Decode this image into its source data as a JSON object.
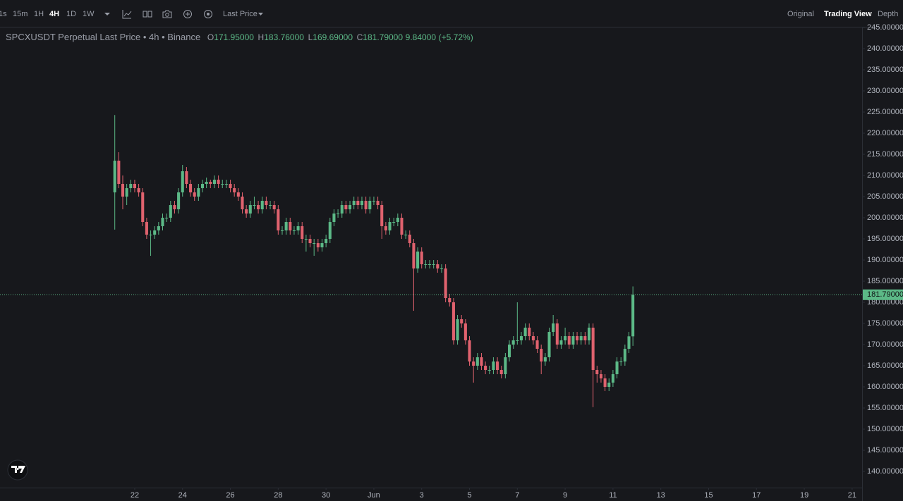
{
  "toolbar": {
    "intervals": [
      "1s",
      "15m",
      "1H",
      "4H",
      "1D",
      "1W"
    ],
    "price_type": "Last Price",
    "views": [
      "Original",
      "Trading View",
      "Depth"
    ]
  },
  "chart_data": {
    "type": "candlestick",
    "title": "SPCXUSDT Perpetual Last Price • 4h • Binance",
    "legend": {
      "items": [
        {
          "key": "O",
          "value": "171.95000"
        },
        {
          "key": "H",
          "value": "183.76000"
        },
        {
          "key": "L",
          "value": "169.69000"
        },
        {
          "key": "C",
          "value": "181.79000"
        }
      ],
      "change": "9.84000",
      "change_pct": "(+5.72%)"
    },
    "up_color": "#5cb987",
    "down_color": "#e0626e",
    "ohlc": [
      [
        206,
        224.3,
        197.2,
        213.5
      ],
      [
        213.5,
        215.5,
        207,
        208
      ],
      [
        208,
        210,
        202,
        205
      ],
      [
        205,
        208,
        203,
        207
      ],
      [
        207,
        209,
        206,
        208
      ],
      [
        208,
        209,
        206,
        207
      ],
      [
        207,
        208,
        205,
        206
      ],
      [
        206,
        207,
        198,
        199
      ],
      [
        199,
        200,
        195,
        196
      ],
      [
        196,
        197,
        191,
        196
      ],
      [
        196,
        198,
        195,
        197
      ],
      [
        197,
        199,
        196,
        198
      ],
      [
        198,
        201,
        197,
        200
      ],
      [
        200,
        201,
        199,
        200
      ],
      [
        200,
        204,
        199,
        203
      ],
      [
        203,
        204,
        201,
        202
      ],
      [
        202,
        207,
        201,
        206
      ],
      [
        206,
        212.5,
        205,
        211
      ],
      [
        211,
        212,
        207,
        208
      ],
      [
        208,
        209,
        205,
        206
      ],
      [
        206,
        207,
        204,
        205
      ],
      [
        205,
        208,
        204,
        207
      ],
      [
        207,
        209,
        206,
        208
      ],
      [
        208,
        209.5,
        207,
        208.5
      ],
      [
        208.5,
        209,
        207,
        208
      ],
      [
        208,
        210,
        207,
        209
      ],
      [
        209,
        210,
        207,
        208
      ],
      [
        208,
        209,
        207,
        208
      ],
      [
        208,
        209,
        207,
        208
      ],
      [
        208,
        209,
        206,
        207
      ],
      [
        207,
        208,
        205,
        206
      ],
      [
        206,
        207,
        204,
        205
      ],
      [
        205,
        206,
        201,
        202
      ],
      [
        202,
        203,
        200,
        201
      ],
      [
        201,
        204,
        200,
        203
      ],
      [
        203,
        205,
        202,
        203
      ],
      [
        203,
        204,
        201,
        202
      ],
      [
        202,
        205,
        201,
        204
      ],
      [
        204,
        205,
        202,
        203
      ],
      [
        203,
        204,
        202,
        203
      ],
      [
        203,
        204,
        201,
        202
      ],
      [
        202,
        203,
        196,
        197
      ],
      [
        197,
        198,
        196,
        197
      ],
      [
        197,
        200,
        196,
        199
      ],
      [
        199,
        200,
        196,
        197
      ],
      [
        197,
        198,
        196,
        197
      ],
      [
        197,
        199,
        196,
        198
      ],
      [
        198,
        199,
        194,
        195
      ],
      [
        195,
        196,
        192,
        195
      ],
      [
        195,
        196,
        193,
        194
      ],
      [
        194,
        195,
        191,
        194
      ],
      [
        194,
        195,
        192,
        193
      ],
      [
        193,
        195,
        192,
        194
      ],
      [
        194,
        196,
        193,
        195
      ],
      [
        195,
        200,
        194,
        199
      ],
      [
        199,
        202,
        198,
        201
      ],
      [
        201,
        202,
        200,
        201
      ],
      [
        201,
        204,
        200,
        203
      ],
      [
        203,
        204,
        201,
        202
      ],
      [
        202,
        204,
        201,
        203
      ],
      [
        203,
        205,
        202,
        204
      ],
      [
        204,
        205,
        202,
        203
      ],
      [
        203,
        205,
        202,
        204
      ],
      [
        204,
        205,
        201,
        202
      ],
      [
        202,
        205,
        201,
        204
      ],
      [
        204,
        205,
        203,
        204
      ],
      [
        204,
        205,
        202,
        203
      ],
      [
        203,
        204,
        195,
        198
      ],
      [
        198,
        199,
        196,
        197
      ],
      [
        197,
        200,
        196,
        199
      ],
      [
        199,
        200,
        198,
        199
      ],
      [
        199,
        201,
        198,
        200
      ],
      [
        200,
        201,
        195,
        196
      ],
      [
        196,
        197,
        195,
        196
      ],
      [
        196,
        197,
        193,
        194
      ],
      [
        194,
        195,
        178,
        188
      ],
      [
        188,
        193,
        187,
        192
      ],
      [
        192,
        193,
        188,
        189
      ],
      [
        189,
        190,
        188,
        189
      ],
      [
        189,
        190,
        188,
        189
      ],
      [
        189,
        190,
        188,
        189
      ],
      [
        189,
        190,
        187,
        188
      ],
      [
        188,
        189,
        187,
        188
      ],
      [
        188,
        189,
        180,
        181
      ],
      [
        181,
        182,
        179,
        180
      ],
      [
        180,
        181,
        170,
        171
      ],
      [
        171,
        177,
        170,
        176
      ],
      [
        176,
        177,
        174,
        175
      ],
      [
        175,
        176,
        170,
        171
      ],
      [
        171,
        172,
        165,
        166
      ],
      [
        166,
        167,
        161,
        165
      ],
      [
        165,
        168,
        164,
        167
      ],
      [
        167,
        168,
        164,
        165
      ],
      [
        165,
        166,
        163,
        164
      ],
      [
        164,
        165,
        163,
        164
      ],
      [
        164,
        167,
        163,
        166
      ],
      [
        166,
        167,
        163,
        164
      ],
      [
        164,
        165,
        162,
        163
      ],
      [
        163,
        168,
        162,
        167
      ],
      [
        167,
        171,
        166,
        170
      ],
      [
        170,
        172,
        169,
        171
      ],
      [
        171,
        180,
        170,
        171
      ],
      [
        171,
        173,
        170,
        172
      ],
      [
        172,
        175,
        171,
        174
      ],
      [
        174,
        175,
        171,
        172
      ],
      [
        172,
        173,
        170,
        171
      ],
      [
        171,
        172,
        168,
        169
      ],
      [
        169,
        170,
        163,
        166
      ],
      [
        166,
        168,
        165,
        167
      ],
      [
        167,
        174,
        166,
        173
      ],
      [
        173,
        177,
        172,
        175
      ],
      [
        175,
        176,
        169,
        170
      ],
      [
        170,
        172,
        169,
        171
      ],
      [
        171,
        174,
        170,
        172
      ],
      [
        172,
        173,
        169,
        170
      ],
      [
        170,
        173,
        169,
        172
      ],
      [
        172,
        173,
        170,
        171
      ],
      [
        171,
        173,
        170,
        172
      ],
      [
        172,
        173,
        170,
        171
      ],
      [
        171,
        175,
        170,
        174
      ],
      [
        174,
        175,
        155.2,
        164
      ],
      [
        164,
        165,
        161,
        163
      ],
      [
        163,
        164,
        161,
        162
      ],
      [
        162,
        163,
        159,
        160
      ],
      [
        160,
        162,
        159,
        161
      ],
      [
        161,
        164,
        160,
        163
      ],
      [
        163,
        167,
        162,
        166
      ],
      [
        166,
        167,
        165,
        166
      ],
      [
        166,
        170,
        165,
        169
      ],
      [
        169,
        173,
        168,
        171.95
      ],
      [
        171.95,
        183.76,
        169.69,
        181.79
      ]
    ],
    "xlim": [
      -28.8,
      187.5
    ],
    "xticks": [
      {
        "value": 5,
        "label": "22"
      },
      {
        "value": 17,
        "label": "24"
      },
      {
        "value": 29,
        "label": "26"
      },
      {
        "value": 41,
        "label": "28"
      },
      {
        "value": 53,
        "label": "30"
      },
      {
        "value": 65,
        "label": "Jun"
      },
      {
        "value": 77,
        "label": "3"
      },
      {
        "value": 89,
        "label": "5"
      },
      {
        "value": 101,
        "label": "7"
      },
      {
        "value": 113,
        "label": "9"
      },
      {
        "value": 125,
        "label": "11"
      },
      {
        "value": 137,
        "label": "13"
      },
      {
        "value": 149,
        "label": "15"
      },
      {
        "value": 161,
        "label": "17"
      },
      {
        "value": 173,
        "label": "19"
      },
      {
        "value": 185,
        "label": "21"
      }
    ],
    "ylim": [
      136.17,
      245.17
    ],
    "yticks": [
      {
        "value": 140,
        "label": "140.00000"
      },
      {
        "value": 145,
        "label": "145.00000"
      },
      {
        "value": 150,
        "label": "150.00000"
      },
      {
        "value": 155,
        "label": "155.00000"
      },
      {
        "value": 160,
        "label": "160.00000"
      },
      {
        "value": 165,
        "label": "165.00000"
      },
      {
        "value": 170,
        "label": "170.00000"
      },
      {
        "value": 175,
        "label": "175.00000"
      },
      {
        "value": 180,
        "label": "180.00000"
      },
      {
        "value": 185,
        "label": "185.00000"
      },
      {
        "value": 190,
        "label": "190.00000"
      },
      {
        "value": 195,
        "label": "195.00000"
      },
      {
        "value": 200,
        "label": "200.00000"
      },
      {
        "value": 205,
        "label": "205.00000"
      },
      {
        "value": 210,
        "label": "210.00000"
      },
      {
        "value": 215,
        "label": "215.00000"
      },
      {
        "value": 220,
        "label": "220.00000"
      },
      {
        "value": 225,
        "label": "225.00000"
      },
      {
        "value": 230,
        "label": "230.00000"
      },
      {
        "value": 235,
        "label": "235.00000"
      },
      {
        "value": 240,
        "label": "240.00000"
      },
      {
        "value": 245,
        "label": "245.00000"
      }
    ],
    "last_price": {
      "value": 181.79,
      "label": "181.79000"
    }
  }
}
